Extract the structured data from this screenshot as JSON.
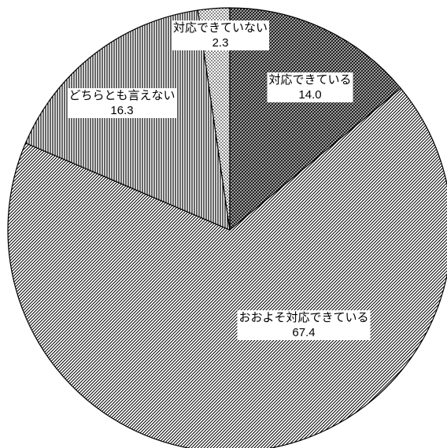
{
  "chart_data": {
    "type": "pie",
    "title": "",
    "slices": [
      {
        "label": "対応できている",
        "value": 14.0,
        "value_text": "14.0",
        "pattern": "dense-hatch"
      },
      {
        "label": "おおよそ対応できている",
        "value": 67.4,
        "value_text": "67.4",
        "pattern": "diagonal-lines"
      },
      {
        "label": "どちらとも言えない",
        "value": 16.3,
        "value_text": "16.3",
        "pattern": "vertical-lines"
      },
      {
        "label": "対応できていない",
        "value": 2.3,
        "value_text": "2.3",
        "pattern": "dots"
      }
    ],
    "start_angle": "top",
    "direction": "clockwise",
    "legend": "none",
    "data_labels": "inside"
  }
}
